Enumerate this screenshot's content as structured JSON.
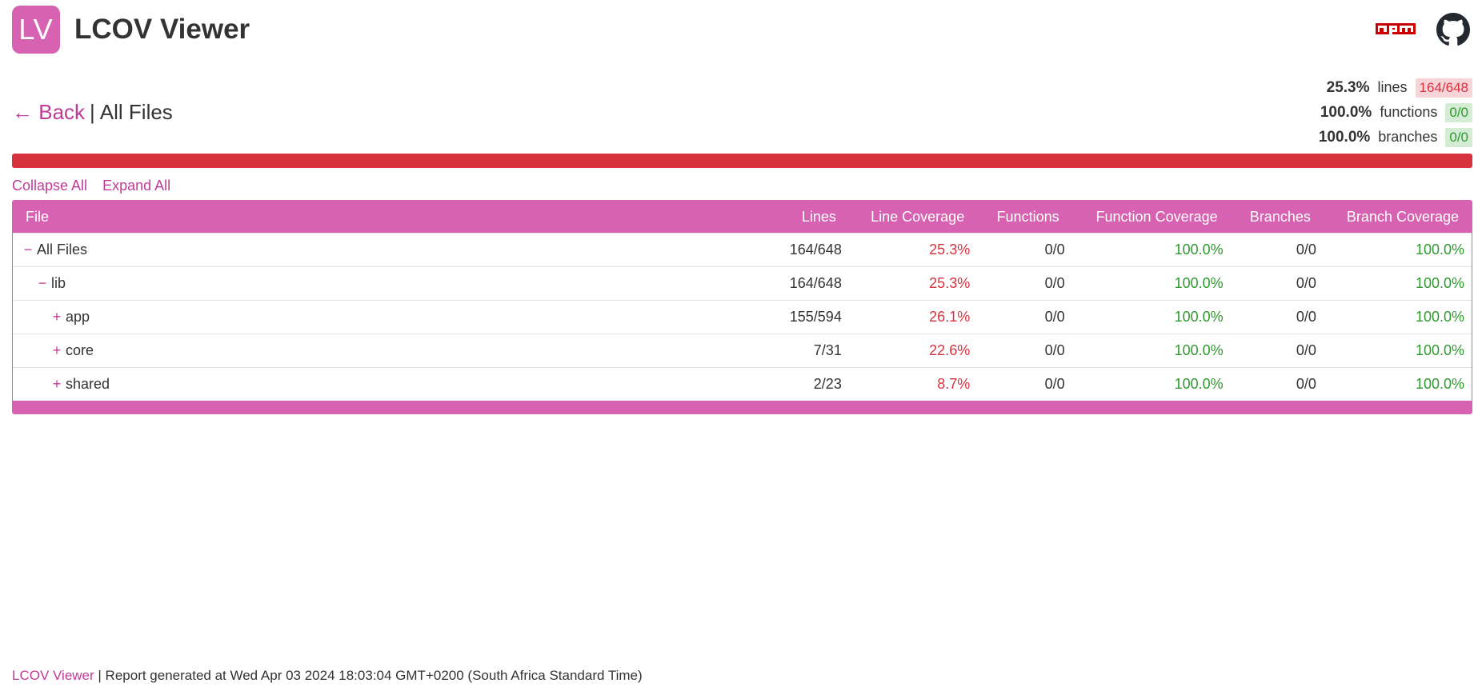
{
  "header": {
    "logo_text": "LV",
    "title": "LCOV Viewer",
    "npm_icon": "npm-icon",
    "github_icon": "github-icon",
    "accent": "#d662b1"
  },
  "breadcrumb": {
    "back_label": "← Back",
    "separator": "|",
    "current": "All Files"
  },
  "summary": {
    "lines": {
      "pct": "25.3%",
      "label": "lines",
      "ratio": "164/648"
    },
    "functions": {
      "pct": "100.0%",
      "label": "functions",
      "ratio": "0/0"
    },
    "branches": {
      "pct": "100.0%",
      "label": "branches",
      "ratio": "0/0"
    }
  },
  "progress": {
    "value": 0.253,
    "color": "#d9323f"
  },
  "controls": {
    "collapse_all": "Collapse All",
    "expand_all": "Expand All"
  },
  "table": {
    "headers": [
      "File",
      "Lines",
      "Line Coverage",
      "Functions",
      "Function Coverage",
      "Branches",
      "Branch Coverage"
    ],
    "rows": [
      {
        "toggle": "−",
        "name": "All Files",
        "level": 0,
        "lines": "164/648",
        "line_cov": "25.3%",
        "functions": "0/0",
        "func_cov": "100.0%",
        "branches": "0/0",
        "branch_cov": "100.0%"
      },
      {
        "toggle": "−",
        "name": "lib",
        "level": 1,
        "lines": "164/648",
        "line_cov": "25.3%",
        "functions": "0/0",
        "func_cov": "100.0%",
        "branches": "0/0",
        "branch_cov": "100.0%"
      },
      {
        "toggle": "+",
        "name": "app",
        "level": 2,
        "lines": "155/594",
        "line_cov": "26.1%",
        "functions": "0/0",
        "func_cov": "100.0%",
        "branches": "0/0",
        "branch_cov": "100.0%"
      },
      {
        "toggle": "+",
        "name": "core",
        "level": 2,
        "lines": "7/31",
        "line_cov": "22.6%",
        "functions": "0/0",
        "func_cov": "100.0%",
        "branches": "0/0",
        "branch_cov": "100.0%"
      },
      {
        "toggle": "+",
        "name": "shared",
        "level": 2,
        "lines": "2/23",
        "line_cov": "8.7%",
        "functions": "0/0",
        "func_cov": "100.0%",
        "branches": "0/0",
        "branch_cov": "100.0%"
      }
    ]
  },
  "footer": {
    "brand": "LCOV Viewer",
    "text": " | Report generated at Wed Apr 03 2024 18:03:04 GMT+0200 (South Africa Standard Time)"
  }
}
